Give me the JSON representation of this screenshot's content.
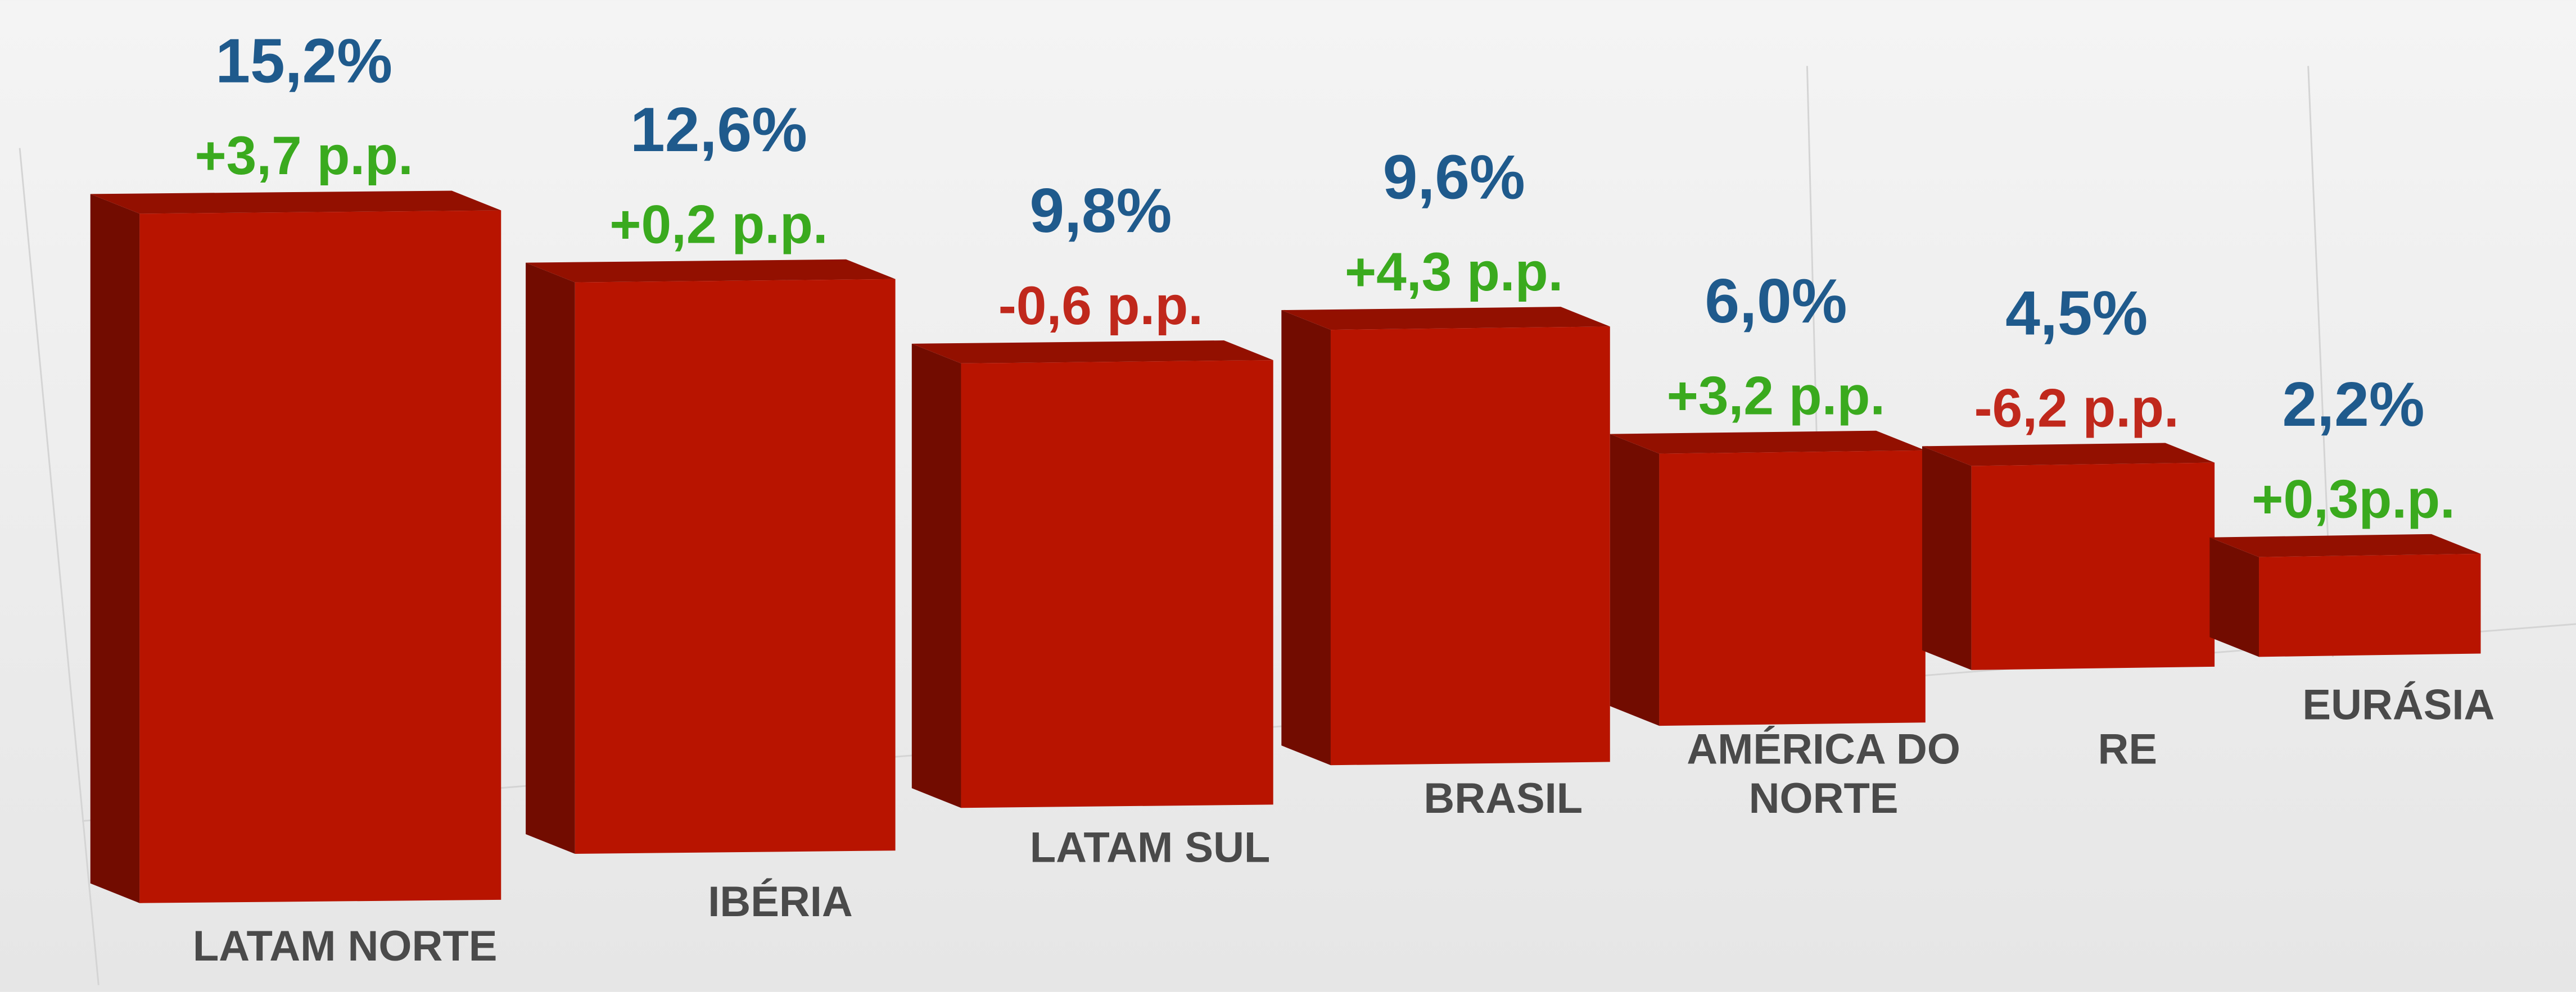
{
  "chart_data": {
    "type": "bar3d",
    "categories": [
      "LATAM NORTE",
      "IBÉRIA",
      "LATAM SUL",
      "BRASIL",
      "AMÉRICA DO NORTE",
      "RE",
      "EURÁSIA"
    ],
    "values": [
      15.2,
      12.6,
      9.8,
      9.6,
      6.0,
      4.5,
      2.2
    ],
    "value_labels": [
      "15,2%",
      "12,6%",
      "9,8%",
      "9,6%",
      "6,0%",
      "4,5%",
      "2,2%"
    ],
    "changes": [
      3.7,
      0.2,
      -0.6,
      4.3,
      3.2,
      -6.2,
      0.3
    ],
    "change_labels": [
      "+3,7 p.p.",
      "+0,2 p.p.",
      "-0,6 p.p.",
      "+4,3 p.p.",
      "+3,2 p.p.",
      "-6,2 p.p.",
      "+0,3p.p."
    ],
    "color": "#b81400",
    "value_label_color": "#1f5a8c",
    "positive_color": "#3aaa1e",
    "negative_color": "#c0281c"
  }
}
